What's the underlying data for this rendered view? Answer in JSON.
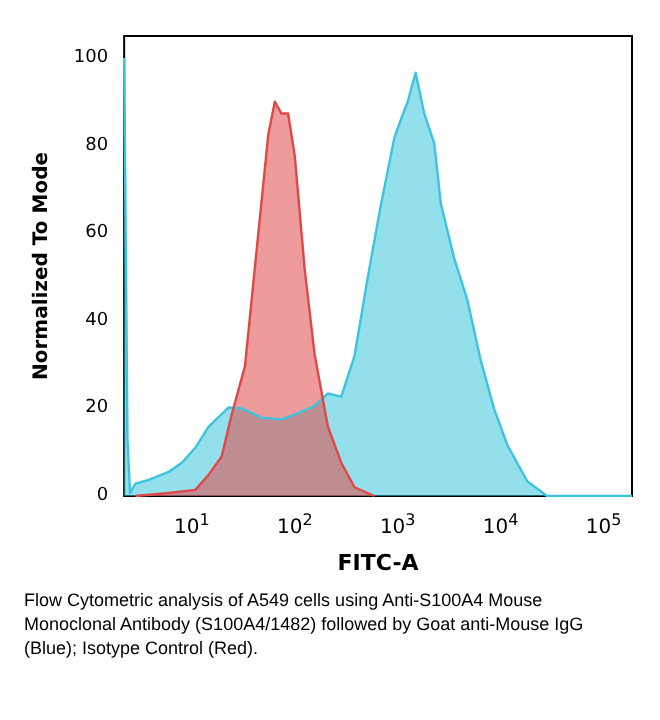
{
  "chart_data": {
    "type": "area",
    "xlabel": "FITC-A",
    "ylabel": "Normalized To Mode",
    "annotations": [
      "Flow Cytometric analysis of A549 cells using Anti-S100A4 Mouse Monoclonal Antibody (S100A4/1482) followed by Goat anti-Mouse IgG (Blue); Isotype Control (Red)."
    ],
    "log": "x",
    "grid": false,
    "marker": "none",
    "line_style": "solid",
    "xlim": [
      2.2,
      189000
    ],
    "ylim": [
      0,
      105
    ],
    "xticks": [
      {
        "value": 10,
        "label": "10$^{1}$"
      },
      {
        "value": 100,
        "label": "10$^{2}$"
      },
      {
        "value": 1000,
        "label": "10$^{3}$"
      },
      {
        "value": 10000,
        "label": "10$^{4}$"
      },
      {
        "value": 100000,
        "label": "10$^{5}$"
      }
    ],
    "yticks": [
      0,
      20,
      40,
      60,
      80,
      100
    ],
    "series": [
      {
        "color": "#3cc4dc",
        "x": [
          2.2,
          2.37,
          2.51,
          2.83,
          3.81,
          5.94,
          8.0,
          10.8,
          14.5,
          22.7,
          30.5,
          47.6,
          74.3,
          100,
          156,
          210,
          283,
          381,
          513,
          690,
          929,
          1077,
          1250,
          1494,
          1811,
          2265,
          2627,
          3535,
          4757,
          6402,
          8616,
          11600,
          18100,
          28300,
          189000
        ],
        "values": [
          100,
          13,
          0.7,
          2.8,
          3.7,
          5.5,
          7.6,
          11,
          15.8,
          20.2,
          20,
          17.9,
          17.5,
          18.6,
          20.6,
          23.4,
          22.7,
          32,
          50,
          66.7,
          81.8,
          86,
          90,
          96.6,
          87.3,
          80.5,
          66.7,
          54.3,
          44.7,
          31,
          20,
          11.7,
          3.4,
          0,
          0
        ]
      },
      {
        "color": "#e04848",
        "x": [
          2.83,
          5.94,
          10.8,
          14.5,
          19.5,
          24.4,
          32.8,
          44.2,
          55.3,
          64.0,
          74.3,
          86.1,
          100,
          125,
          156,
          210,
          283,
          381,
          594
        ],
        "values": [
          0,
          0.7,
          1.4,
          4.8,
          9,
          18.6,
          29.6,
          59.8,
          82.5,
          90,
          87.3,
          87.3,
          77.7,
          51.6,
          32.3,
          15.8,
          7.6,
          2,
          0
        ]
      }
    ]
  }
}
